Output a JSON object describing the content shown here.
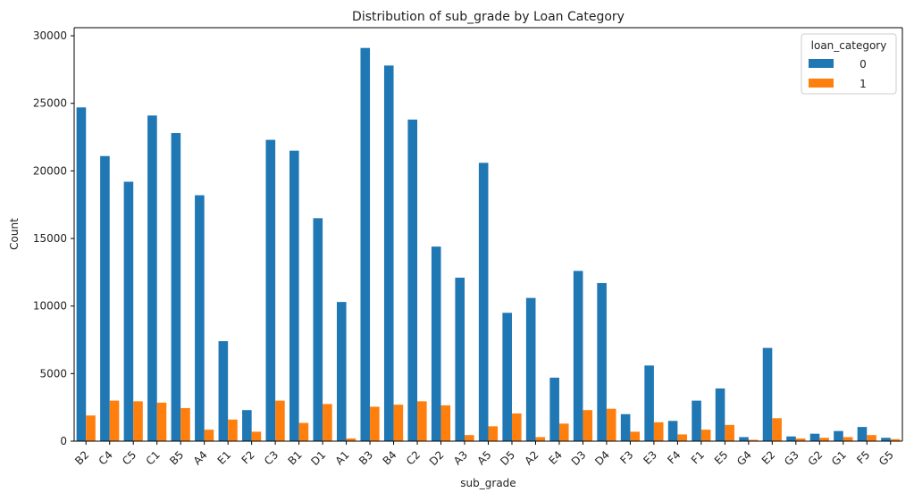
{
  "chart_data": {
    "type": "bar",
    "title": "Distribution of sub_grade by Loan Category",
    "xlabel": "sub_grade",
    "ylabel": "Count",
    "ylim": [
      0,
      30600
    ],
    "yticks": [
      0,
      5000,
      10000,
      15000,
      20000,
      25000,
      30000
    ],
    "grid": false,
    "legend": {
      "title": "loan_category",
      "placement": "top-right"
    },
    "categories": [
      "B2",
      "C4",
      "C5",
      "C1",
      "B5",
      "A4",
      "E1",
      "F2",
      "C3",
      "B1",
      "D1",
      "A1",
      "B3",
      "B4",
      "C2",
      "D2",
      "A3",
      "A5",
      "D5",
      "A2",
      "E4",
      "D3",
      "D4",
      "F3",
      "E3",
      "F4",
      "F1",
      "E5",
      "G4",
      "E2",
      "G3",
      "G2",
      "G1",
      "F5",
      "G5"
    ],
    "series": [
      {
        "name": "0",
        "color": "#1f77b4",
        "values": [
          24700,
          21100,
          19200,
          24100,
          22800,
          18200,
          7400,
          2300,
          22300,
          21500,
          16500,
          10300,
          29100,
          27800,
          23800,
          14400,
          12100,
          20600,
          9500,
          10600,
          4700,
          12600,
          11700,
          2000,
          5600,
          1500,
          3000,
          3900,
          300,
          6900,
          350,
          550,
          750,
          1050,
          250
        ]
      },
      {
        "name": "1",
        "color": "#ff7f0e",
        "values": [
          1900,
          3000,
          2950,
          2850,
          2450,
          850,
          1600,
          700,
          3000,
          1350,
          2750,
          200,
          2550,
          2700,
          2950,
          2650,
          450,
          1100,
          2050,
          300,
          1300,
          2300,
          2400,
          700,
          1400,
          500,
          850,
          1200,
          100,
          1700,
          200,
          250,
          300,
          450,
          150
        ]
      }
    ]
  }
}
